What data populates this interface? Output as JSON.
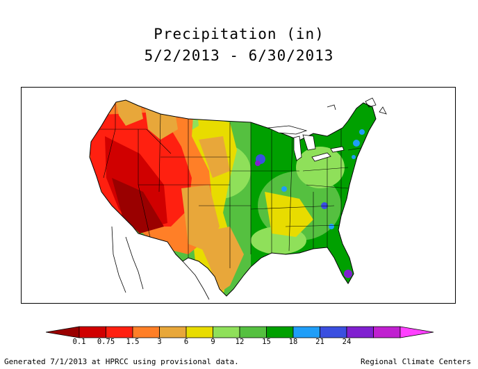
{
  "title": "Precipitation (in)",
  "subtitle": "5/2/2013 - 6/30/2013",
  "legend": {
    "colors": [
      "#9a0000",
      "#d00000",
      "#ff2010",
      "#ff7f27",
      "#e8a73a",
      "#e8dc00",
      "#8fe05a",
      "#55c040",
      "#00a000",
      "#1f9ef8",
      "#3a4fe0",
      "#8020d0",
      "#c020d0",
      "#ff40ff"
    ],
    "ticks": [
      "0.1",
      "0.75",
      "1.5",
      "3",
      "6",
      "9",
      "12",
      "15",
      "18",
      "21",
      "24"
    ]
  },
  "footer": {
    "left": "Generated 7/1/2013 at HPRCC using provisional data.",
    "right": "Regional Climate Centers"
  }
}
